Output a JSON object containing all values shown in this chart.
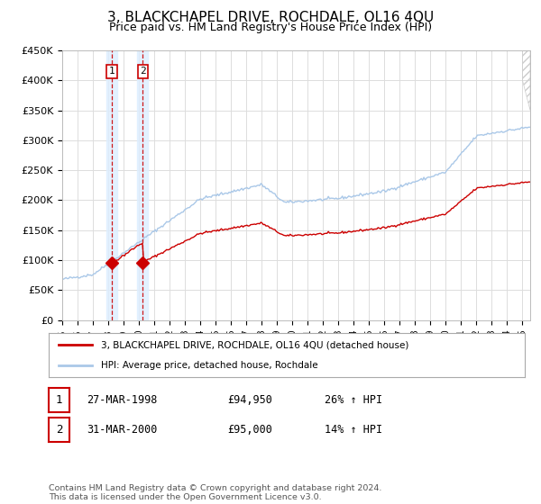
{
  "title": "3, BLACKCHAPEL DRIVE, ROCHDALE, OL16 4QU",
  "subtitle": "Price paid vs. HM Land Registry's House Price Index (HPI)",
  "title_fontsize": 11,
  "subtitle_fontsize": 9,
  "ylim": [
    0,
    450000
  ],
  "yticks": [
    0,
    50000,
    100000,
    150000,
    200000,
    250000,
    300000,
    350000,
    400000,
    450000
  ],
  "ytick_labels": [
    "£0",
    "£50K",
    "£100K",
    "£150K",
    "£200K",
    "£250K",
    "£300K",
    "£350K",
    "£400K",
    "£450K"
  ],
  "background_color": "#ffffff",
  "grid_color": "#dddddd",
  "line1_color": "#cc0000",
  "line2_color": "#aac8e8",
  "purchase1_price": 94950,
  "purchase1_year": 1998.23,
  "purchase2_price": 95000,
  "purchase2_year": 2000.25,
  "legend_label1": "3, BLACKCHAPEL DRIVE, ROCHDALE, OL16 4QU (detached house)",
  "legend_label2": "HPI: Average price, detached house, Rochdale",
  "table_rows": [
    [
      "1",
      "27-MAR-1998",
      "£94,950",
      "26% ↑ HPI"
    ],
    [
      "2",
      "31-MAR-2000",
      "£95,000",
      "14% ↑ HPI"
    ]
  ],
  "footer": "Contains HM Land Registry data © Crown copyright and database right 2024.\nThis data is licensed under the Open Government Licence v3.0.",
  "xmin": 1995,
  "xmax": 2025.5
}
